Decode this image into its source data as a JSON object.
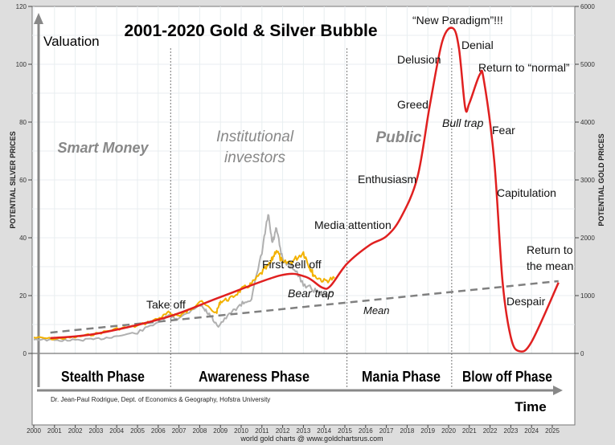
{
  "chart_data": {
    "type": "line",
    "title": "2001-2020 Gold & Silver Bubble",
    "ylabel_left": "POTENTIAL SILVER PRICES",
    "ylabel_right": "POTENTIAL GOLD PRICES",
    "y_axis_arrow_label": "Valuation",
    "x_axis_arrow_label": "Time",
    "ylim_left": [
      0,
      120
    ],
    "ylim_right": [
      0,
      6000
    ],
    "left_ticks": [
      0,
      20,
      40,
      60,
      80,
      100,
      120
    ],
    "right_ticks": [
      0,
      1000,
      2000,
      3000,
      4000,
      5000,
      6000
    ],
    "xlim": [
      2000,
      2026
    ],
    "x_ticks": [
      2000,
      2001,
      2002,
      2003,
      2004,
      2005,
      2006,
      2007,
      2008,
      2009,
      2010,
      2011,
      2012,
      2013,
      2014,
      2015,
      2016,
      2017,
      2018,
      2019,
      2020,
      2021,
      2022,
      2023,
      2024,
      2025
    ],
    "grid": true,
    "colors": {
      "bubble": "#e02020",
      "gold": "#f2b100",
      "silver": "#b0b0b0",
      "mean": "#808080"
    },
    "series": [
      {
        "key": "bubble",
        "style": "smooth",
        "x": [
          2000.8,
          2003,
          2006.4,
          2009,
          2011.9,
          2013.1,
          2013.9,
          2014.3,
          2015.1,
          2016.2,
          2017,
          2017.7,
          2018.5,
          2019.1,
          2019.7,
          2020.2,
          2020.5,
          2020.8,
          2021.0,
          2021.5,
          2021.7,
          2022.2,
          2022.6,
          2023.0,
          2023.4,
          2024,
          2025.3
        ],
        "y": [
          5.3,
          6.8,
          12.5,
          19.5,
          27,
          26.5,
          22.8,
          23.3,
          31,
          37.5,
          40.5,
          47,
          61,
          86,
          108,
          112.5,
          105.5,
          85,
          86.5,
          96.4,
          94.5,
          66.7,
          25,
          5.6,
          0.8,
          4,
          24.5
        ]
      },
      {
        "key": "gold",
        "x": [
          2000,
          2001,
          2002,
          2003,
          2004,
          2005,
          2006,
          2006.5,
          2007,
          2007.5,
          2008,
          2008.8,
          2009,
          2009.5,
          2010,
          2010.5,
          2011,
          2011.4,
          2011.7,
          2012,
          2012.5,
          2013,
          2013.3,
          2013.5,
          2014,
          2014.5
        ],
        "y": [
          5.5,
          5,
          5.6,
          6.8,
          8.5,
          9.5,
          12,
          14,
          13,
          15,
          18,
          14,
          18,
          19,
          22,
          24,
          28,
          31,
          36,
          31,
          32,
          35,
          30,
          27,
          25,
          26
        ]
      },
      {
        "key": "silver",
        "x": [
          2000,
          2001,
          2002,
          2003,
          2004,
          2005,
          2006,
          2006.5,
          2007,
          2008,
          2008.4,
          2008.9,
          2009.5,
          2010,
          2010.5,
          2011,
          2011.3,
          2011.5,
          2011.7,
          2012,
          2012.5,
          2013,
          2013.5,
          2014,
          2014.4
        ],
        "y": [
          5,
          4.5,
          4.6,
          4.9,
          6,
          7.2,
          11,
          13,
          12,
          17,
          14,
          9.5,
          14,
          17,
          19,
          35,
          48,
          38,
          43,
          32,
          30,
          24,
          22,
          20,
          21
        ]
      },
      {
        "key": "mean",
        "style": "dashed",
        "x": [
          2000.8,
          2025.3
        ],
        "y": [
          7.2,
          25
        ]
      }
    ],
    "phase_dividers": [
      2006.6,
      2015.1,
      2020.15
    ],
    "phases": [
      "Stealth Phase",
      "Awareness Phase",
      "Mania Phase",
      "Blow off Phase"
    ],
    "investor_groups": [
      "Smart Money",
      "Institutional investors",
      "Public"
    ],
    "annotations": {
      "take_off": "Take off",
      "first_sell_off": "First Sell off",
      "bear_trap": "Bear trap",
      "media_attention": "Media attention",
      "enthusiasm": "Enthusiasm",
      "greed": "Greed",
      "delusion": "Delusion",
      "new_paradigm": "“New Paradigm”!!!",
      "denial": "Denial",
      "bull_trap": "Bull trap",
      "return_normal": "Return to “normal”",
      "fear": "Fear",
      "capitulation": "Capitulation",
      "despair": "Despair",
      "return_mean_1": "Return to",
      "return_mean_2": "the mean",
      "mean": "Mean"
    },
    "investor_group_lines": {
      "institutional_1": "Institutional",
      "institutional_2": "investors"
    },
    "credit": "Dr. Jean-Paul Rodrigue, Dept. of Economics & Geography, Hofstra University",
    "source": "world gold charts @ www.goldchartsrus.com"
  }
}
